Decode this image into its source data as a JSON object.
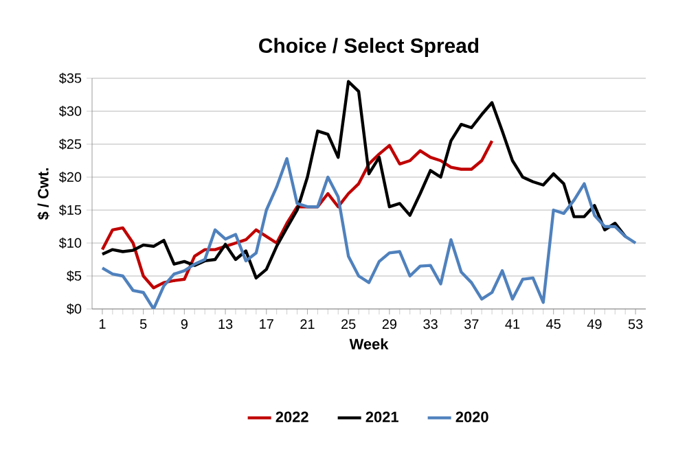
{
  "chart_data": {
    "type": "line",
    "title": "Choice / Select Spread",
    "xlabel": "Week",
    "ylabel": "$ / Cwt.",
    "x": [
      1,
      2,
      3,
      4,
      5,
      6,
      7,
      8,
      9,
      10,
      11,
      12,
      13,
      14,
      15,
      16,
      17,
      18,
      19,
      20,
      21,
      22,
      23,
      24,
      25,
      26,
      27,
      28,
      29,
      30,
      31,
      32,
      33,
      34,
      35,
      36,
      37,
      38,
      39,
      40,
      41,
      42,
      43,
      44,
      45,
      46,
      47,
      48,
      49,
      50,
      51,
      52,
      53
    ],
    "xlim": [
      0,
      54
    ],
    "xticks": [
      1,
      5,
      9,
      13,
      17,
      21,
      25,
      29,
      33,
      37,
      41,
      45,
      49,
      53
    ],
    "ylim": [
      0,
      35
    ],
    "yticks": [
      {
        "value": 0,
        "label": "$0"
      },
      {
        "value": 5,
        "label": "$5"
      },
      {
        "value": 10,
        "label": "$10"
      },
      {
        "value": 15,
        "label": "$15"
      },
      {
        "value": 20,
        "label": "$20"
      },
      {
        "value": 25,
        "label": "$25"
      },
      {
        "value": 30,
        "label": "$30"
      },
      {
        "value": 35,
        "label": "$35"
      }
    ],
    "grid": "y",
    "legend": "bottom",
    "marker": "none",
    "line_style": "solid",
    "series": [
      {
        "name": "2022",
        "color": "#c00000",
        "values": [
          9,
          12,
          12.3,
          10,
          5,
          3.2,
          4,
          4.3,
          4.5,
          8,
          9,
          9,
          9.5,
          10,
          10.5,
          12,
          11,
          10,
          13,
          15.5,
          15.5,
          15.5,
          17.5,
          15.5,
          17.5,
          19,
          22,
          23.5,
          24.8,
          22,
          22.5,
          24,
          23,
          22.5,
          21.5,
          21.2,
          21.2,
          22.5,
          25.5,
          null,
          null,
          null,
          null,
          null,
          null,
          null,
          null,
          null,
          null,
          null,
          null,
          null,
          null
        ]
      },
      {
        "name": "2021",
        "color": "#000000",
        "values": [
          8.3,
          9,
          8.7,
          8.9,
          9.7,
          9.5,
          10.4,
          6.8,
          7.2,
          6.6,
          7.3,
          7.5,
          9.8,
          7.5,
          8.8,
          4.7,
          6,
          9.5,
          12.3,
          15,
          20,
          27,
          26.5,
          23,
          34.5,
          33,
          20.5,
          23,
          15.5,
          16,
          14.2,
          17.5,
          21,
          20,
          25.5,
          28,
          27.5,
          29.5,
          31.3,
          27,
          22.5,
          20,
          19.3,
          18.8,
          20.5,
          19,
          14,
          14,
          15.7,
          12,
          13,
          11,
          null
        ]
      },
      {
        "name": "2020",
        "color": "#4f81bd",
        "values": [
          6.2,
          5.3,
          5,
          2.8,
          2.5,
          0,
          3.5,
          5.3,
          5.8,
          6.8,
          7.5,
          12,
          10.6,
          11.3,
          7.3,
          8.5,
          15,
          18.5,
          22.8,
          16,
          15.5,
          15.5,
          20,
          17,
          8,
          5,
          4,
          7.2,
          8.5,
          8.7,
          5,
          6.5,
          6.6,
          3.8,
          10.5,
          5.6,
          4,
          1.5,
          2.5,
          5.8,
          1.5,
          4.5,
          4.7,
          1,
          15,
          14.5,
          16.5,
          19,
          14.2,
          12.5,
          12.5,
          11,
          10
        ]
      }
    ]
  }
}
